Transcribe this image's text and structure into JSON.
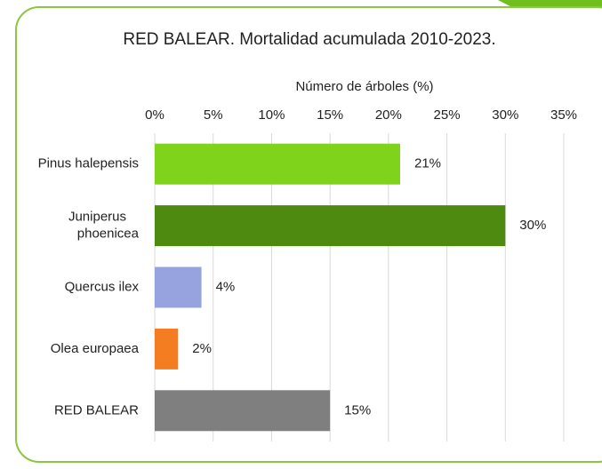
{
  "chart_data": {
    "type": "bar",
    "orientation": "horizontal",
    "title": "RED BALEAR. Mortalidad acumulada 2010-2023.",
    "x_label": "Número de árboles (%)",
    "categories": [
      "Pinus halepensis",
      "Juniperus phoenicea",
      "Quercus ilex",
      "Olea europaea",
      "RED BALEAR"
    ],
    "values": [
      21,
      30,
      4,
      2,
      15
    ],
    "value_labels": [
      "21%",
      "30%",
      "4%",
      "2%",
      "15%"
    ],
    "colors": [
      "#7fd31a",
      "#4e8a10",
      "#97a3df",
      "#f47d22",
      "#7f7f7f"
    ],
    "xlim": [
      0,
      35
    ],
    "xticks": [
      {
        "value": 0,
        "label": "0%"
      },
      {
        "value": 5,
        "label": "5%"
      },
      {
        "value": 10,
        "label": "10%"
      },
      {
        "value": 15,
        "label": "15%"
      },
      {
        "value": 20,
        "label": "20%"
      },
      {
        "value": 25,
        "label": "25%"
      },
      {
        "value": 30,
        "label": "30%"
      },
      {
        "value": 35,
        "label": "35%"
      }
    ],
    "grid": true
  }
}
